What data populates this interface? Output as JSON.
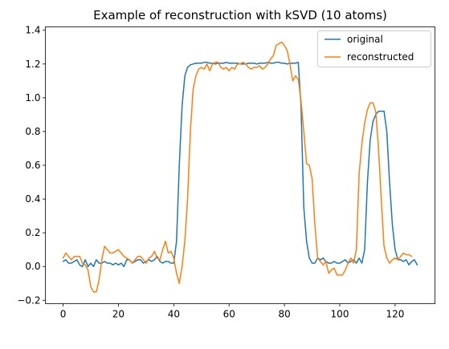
{
  "chart_data": {
    "type": "line",
    "title": "Example of reconstruction with kSVD (10 atoms)",
    "xlabel": "",
    "ylabel": "",
    "xlim": [
      -6.4,
      134.4
    ],
    "ylim": [
      -0.22,
      1.42
    ],
    "xticks": [
      0,
      20,
      40,
      60,
      80,
      100,
      120
    ],
    "yticks": [
      -0.2,
      0.0,
      0.2,
      0.4,
      0.6,
      0.8,
      1.0,
      1.2,
      1.4
    ],
    "grid": false,
    "legend": "top-right",
    "series": [
      {
        "name": "original",
        "color": "#1f77b4",
        "values": [
          0.03,
          0.04,
          0.02,
          0.02,
          0.03,
          0.04,
          0.01,
          0.0,
          0.04,
          0.0,
          0.02,
          0.0,
          0.04,
          0.02,
          0.02,
          0.03,
          0.02,
          0.02,
          0.01,
          0.02,
          0.01,
          0.02,
          0.0,
          0.04,
          0.04,
          0.02,
          0.03,
          0.04,
          0.04,
          0.02,
          0.03,
          0.04,
          0.03,
          0.04,
          0.06,
          0.03,
          0.02,
          0.03,
          0.03,
          0.02,
          0.02,
          0.15,
          0.6,
          0.95,
          1.13,
          1.18,
          1.195,
          1.2,
          1.205,
          1.205,
          1.205,
          1.21,
          1.21,
          1.205,
          1.205,
          1.2,
          1.205,
          1.205,
          1.205,
          1.21,
          1.205,
          1.205,
          1.205,
          1.205,
          1.2,
          1.2,
          1.2,
          1.205,
          1.205,
          1.205,
          1.2,
          1.205,
          1.205,
          1.205,
          1.21,
          1.205,
          1.205,
          1.21,
          1.21,
          1.205,
          1.205,
          1.2,
          1.205,
          1.205,
          1.205,
          1.21,
          0.95,
          0.35,
          0.15,
          0.05,
          0.02,
          0.02,
          0.05,
          0.04,
          0.05,
          0.03,
          0.02,
          0.02,
          0.03,
          0.02,
          0.02,
          0.03,
          0.04,
          0.02,
          0.03,
          0.04,
          0.02,
          0.05,
          0.02,
          0.1,
          0.5,
          0.75,
          0.86,
          0.9,
          0.92,
          0.92,
          0.92,
          0.8,
          0.5,
          0.25,
          0.1,
          0.04,
          0.04,
          0.03,
          0.04,
          0.01,
          0.03,
          0.04,
          0.01
        ]
      },
      {
        "name": "reconstructed",
        "color": "#ff7f0e",
        "values": [
          0.05,
          0.08,
          0.06,
          0.04,
          0.06,
          0.06,
          0.06,
          0.02,
          0.01,
          -0.02,
          -0.12,
          -0.15,
          -0.15,
          -0.08,
          0.04,
          0.12,
          0.1,
          0.08,
          0.08,
          0.09,
          0.1,
          0.08,
          0.06,
          0.05,
          0.04,
          0.02,
          0.04,
          0.06,
          0.06,
          0.04,
          0.02,
          0.05,
          0.06,
          0.09,
          0.05,
          0.04,
          0.1,
          0.15,
          0.08,
          0.09,
          0.05,
          -0.04,
          -0.1,
          0.0,
          0.15,
          0.4,
          0.8,
          1.05,
          1.13,
          1.17,
          1.18,
          1.17,
          1.2,
          1.16,
          1.2,
          1.21,
          1.21,
          1.18,
          1.17,
          1.18,
          1.16,
          1.18,
          1.17,
          1.2,
          1.2,
          1.21,
          1.2,
          1.18,
          1.17,
          1.18,
          1.18,
          1.19,
          1.17,
          1.18,
          1.2,
          1.23,
          1.25,
          1.31,
          1.32,
          1.33,
          1.31,
          1.28,
          1.2,
          1.1,
          1.13,
          1.11,
          0.98,
          0.8,
          0.61,
          0.6,
          0.52,
          0.25,
          0.05,
          0.03,
          0.01,
          0.03,
          -0.04,
          -0.02,
          -0.01,
          -0.05,
          -0.05,
          -0.05,
          -0.02,
          0.02,
          0.05,
          0.02,
          0.1,
          0.55,
          0.73,
          0.85,
          0.93,
          0.97,
          0.97,
          0.92,
          0.7,
          0.4,
          0.12,
          0.05,
          0.02,
          0.04,
          0.05,
          0.04,
          0.06,
          0.08,
          0.07,
          0.07,
          0.06
        ]
      }
    ]
  }
}
